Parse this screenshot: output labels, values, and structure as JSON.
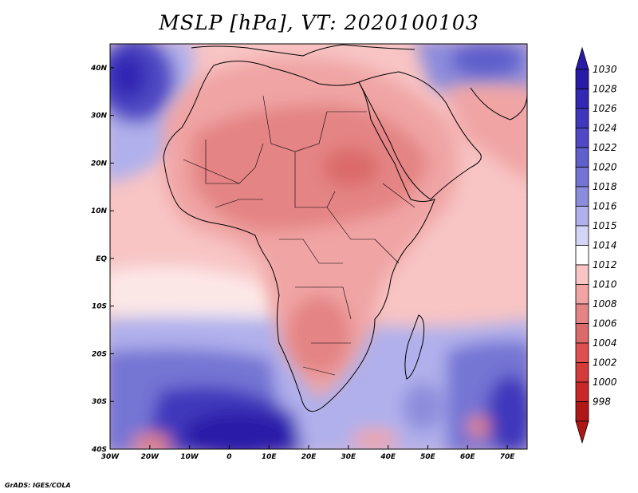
{
  "title": "MSLP [hPa], VT: 2020100103",
  "credit": "GrADS: IGES/COLA",
  "map": {
    "lon_range": [
      -30,
      75
    ],
    "lat_range": [
      -40,
      45
    ],
    "lat_labels": [
      "40N",
      "30N",
      "20N",
      "10N",
      "EQ",
      "10S",
      "20S",
      "30S",
      "40S"
    ],
    "lat_values": [
      40,
      30,
      20,
      10,
      0,
      -10,
      -20,
      -30,
      -40
    ],
    "lon_labels": [
      "30W",
      "20W",
      "10W",
      "0",
      "10E",
      "20E",
      "30E",
      "40E",
      "50E",
      "60E",
      "70E"
    ],
    "lon_values": [
      -30,
      -20,
      -10,
      0,
      10,
      20,
      30,
      40,
      50,
      60,
      70
    ]
  },
  "colorbar": {
    "levels": [
      "1030",
      "1028",
      "1026",
      "1024",
      "1022",
      "1020",
      "1018",
      "1016",
      "1015",
      "1014",
      "1012",
      "1010",
      "1008",
      "1006",
      "1004",
      "1002",
      "1000",
      "998"
    ],
    "colors": [
      "#2a1aa8",
      "#3228b4",
      "#4038bc",
      "#5048c4",
      "#6060cc",
      "#7474d4",
      "#8c8cdc",
      "#b0b0ec",
      "#d4d4f6",
      "#ffffff",
      "#f8c4c4",
      "#f0a4a4",
      "#e48484",
      "#dc6a6a",
      "#e05050",
      "#d43c3c",
      "#c82828",
      "#b01818"
    ]
  }
}
